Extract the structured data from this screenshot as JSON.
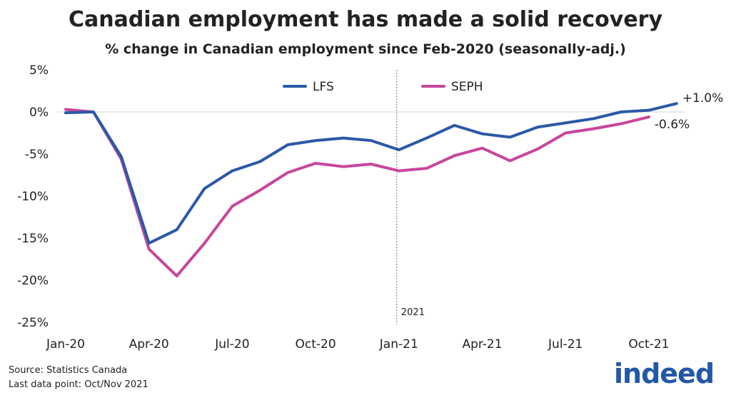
{
  "chart_data": {
    "type": "line",
    "title": "Canadian employment has made a solid recovery",
    "subtitle": "% change in Canadian employment since Feb-2020 (seasonally-adj.)",
    "x": [
      "Jan-20",
      "Feb-20",
      "Mar-20",
      "Apr-20",
      "May-20",
      "Jun-20",
      "Jul-20",
      "Aug-20",
      "Sep-20",
      "Oct-20",
      "Nov-20",
      "Dec-20",
      "Jan-21",
      "Feb-21",
      "Mar-21",
      "Apr-21",
      "May-21",
      "Jun-21",
      "Jul-21",
      "Aug-21",
      "Sep-21",
      "Oct-21",
      "Nov-21"
    ],
    "xticks": [
      "Jan-20",
      "Apr-20",
      "Jul-20",
      "Oct-20",
      "Jan-21",
      "Apr-21",
      "Jul-21",
      "Oct-21"
    ],
    "yticks": [
      "5%",
      "0%",
      "-5%",
      "-10%",
      "-15%",
      "-20%",
      "-25%"
    ],
    "ylim": [
      -25,
      5
    ],
    "series": [
      {
        "name": "LFS",
        "color": "#2b59a8",
        "values": [
          -0.1,
          0.0,
          -5.3,
          -15.6,
          -14.0,
          -9.1,
          -7.0,
          -5.9,
          -3.9,
          -3.4,
          -3.1,
          -3.4,
          -4.5,
          -3.1,
          -1.6,
          -2.6,
          -3.0,
          -1.8,
          -1.3,
          -0.8,
          0.0,
          0.2,
          1.0
        ],
        "end_label": "+1.0%"
      },
      {
        "name": "SEPH",
        "color": "#c7469b",
        "values": [
          0.3,
          0.0,
          -5.6,
          -16.3,
          -19.5,
          -15.6,
          -11.2,
          -9.3,
          -7.2,
          -6.1,
          -6.5,
          -6.2,
          -7.0,
          -6.7,
          -5.2,
          -4.3,
          -5.8,
          -4.4,
          -2.5,
          -2.0,
          -1.4,
          -0.6,
          null
        ],
        "end_label": "-0.6%"
      }
    ],
    "annotation": {
      "x": "Jan-21",
      "label": "2021"
    },
    "legend": "top-center",
    "grid": false
  },
  "footer": {
    "source": "Source: Statistics Canada",
    "last_point": "Last data point: Oct/Nov 2021",
    "logo_text": "indeed"
  }
}
